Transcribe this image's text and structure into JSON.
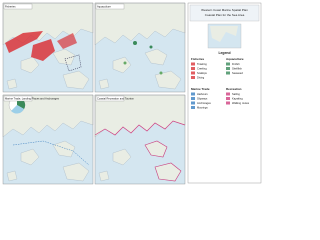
{
  "header": {
    "title": "Western Coast Marine Spatial Plan",
    "subtitle": "Coastal Plan for the Sea Area"
  },
  "panels": [
    {
      "title": "Fisheries"
    },
    {
      "title": "Aquaculture"
    },
    {
      "title": "Marine Trade, Landing Places and Anchorages"
    },
    {
      "title": "Coastal Recreation and Tourism"
    }
  ],
  "legend": {
    "title": "Legend",
    "sections": [
      {
        "heading": "Fisheries",
        "items": [
          "Trawling",
          "Creeling",
          "Scallops",
          "Diving"
        ]
      },
      {
        "heading": "Aquaculture",
        "items": [
          "Finfish",
          "Shellfish",
          "Seaweed"
        ]
      },
      {
        "heading": "Marine Trade",
        "items": [
          "Harbours",
          "Slipways",
          "Anchorages",
          "Moorings"
        ]
      },
      {
        "heading": "Recreation",
        "items": [
          "Sailing",
          "Kayaking",
          "Walking routes"
        ]
      }
    ]
  }
}
